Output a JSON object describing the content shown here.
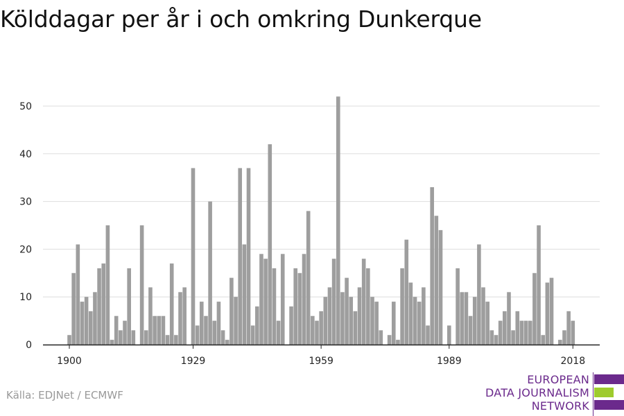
{
  "title": "Kölddagar per år i och omkring Dunkerque",
  "source": "Källa: EDJNet / ECMWF",
  "logo": {
    "lines": [
      "EUROPEAN",
      "DATA JOURNALISM",
      "NETWORK"
    ],
    "colors": {
      "text": "#6b2a8c",
      "bar_purple": "#6b2a8c",
      "bar_green": "#9ecb2d"
    }
  },
  "colors": {
    "bar": "#9e9e9e",
    "grid": "#dddddd",
    "axis": "#222222"
  },
  "chart_data": {
    "type": "bar",
    "title": "Kölddagar per år i och omkring Dunkerque",
    "xlabel": "",
    "ylabel": "",
    "x_range": [
      1900,
      2018
    ],
    "ylim": [
      0,
      52
    ],
    "yticks": [
      0,
      10,
      20,
      30,
      40,
      50
    ],
    "xticks": [
      1900,
      1929,
      1959,
      1989,
      2018
    ],
    "grid": true,
    "x": [
      1900,
      1901,
      1902,
      1903,
      1904,
      1905,
      1906,
      1907,
      1908,
      1909,
      1910,
      1911,
      1912,
      1913,
      1914,
      1915,
      1916,
      1917,
      1918,
      1919,
      1920,
      1921,
      1922,
      1923,
      1924,
      1925,
      1926,
      1927,
      1928,
      1929,
      1930,
      1931,
      1932,
      1933,
      1934,
      1935,
      1936,
      1937,
      1938,
      1939,
      1940,
      1941,
      1942,
      1943,
      1944,
      1945,
      1946,
      1947,
      1948,
      1949,
      1950,
      1951,
      1952,
      1953,
      1954,
      1955,
      1956,
      1957,
      1958,
      1959,
      1960,
      1961,
      1962,
      1963,
      1964,
      1965,
      1966,
      1967,
      1968,
      1969,
      1970,
      1971,
      1972,
      1973,
      1974,
      1975,
      1976,
      1977,
      1978,
      1979,
      1980,
      1981,
      1982,
      1983,
      1984,
      1985,
      1986,
      1987,
      1988,
      1989,
      1990,
      1991,
      1992,
      1993,
      1994,
      1995,
      1996,
      1997,
      1998,
      1999,
      2000,
      2001,
      2002,
      2003,
      2004,
      2005,
      2006,
      2007,
      2008,
      2009,
      2010,
      2011,
      2012,
      2013,
      2014,
      2015,
      2016,
      2017,
      2018
    ],
    "values": [
      2,
      15,
      21,
      9,
      10,
      7,
      11,
      16,
      17,
      25,
      1,
      6,
      3,
      5,
      16,
      3,
      0,
      25,
      3,
      12,
      6,
      6,
      6,
      2,
      17,
      2,
      11,
      12,
      0,
      37,
      4,
      9,
      6,
      30,
      5,
      9,
      3,
      1,
      14,
      10,
      37,
      21,
      37,
      4,
      8,
      19,
      18,
      42,
      16,
      5,
      19,
      0,
      8,
      16,
      15,
      19,
      28,
      6,
      5,
      7,
      10,
      12,
      18,
      52,
      11,
      14,
      10,
      7,
      12,
      18,
      16,
      10,
      9,
      3,
      0,
      2,
      9,
      1,
      16,
      22,
      13,
      10,
      9,
      12,
      4,
      33,
      27,
      24,
      0,
      4,
      0,
      16,
      11,
      11,
      6,
      10,
      21,
      12,
      9,
      3,
      2,
      5,
      7,
      11,
      3,
      7,
      5,
      5,
      5,
      15,
      25,
      2,
      13,
      14,
      0,
      1,
      3,
      7,
      5
    ]
  }
}
